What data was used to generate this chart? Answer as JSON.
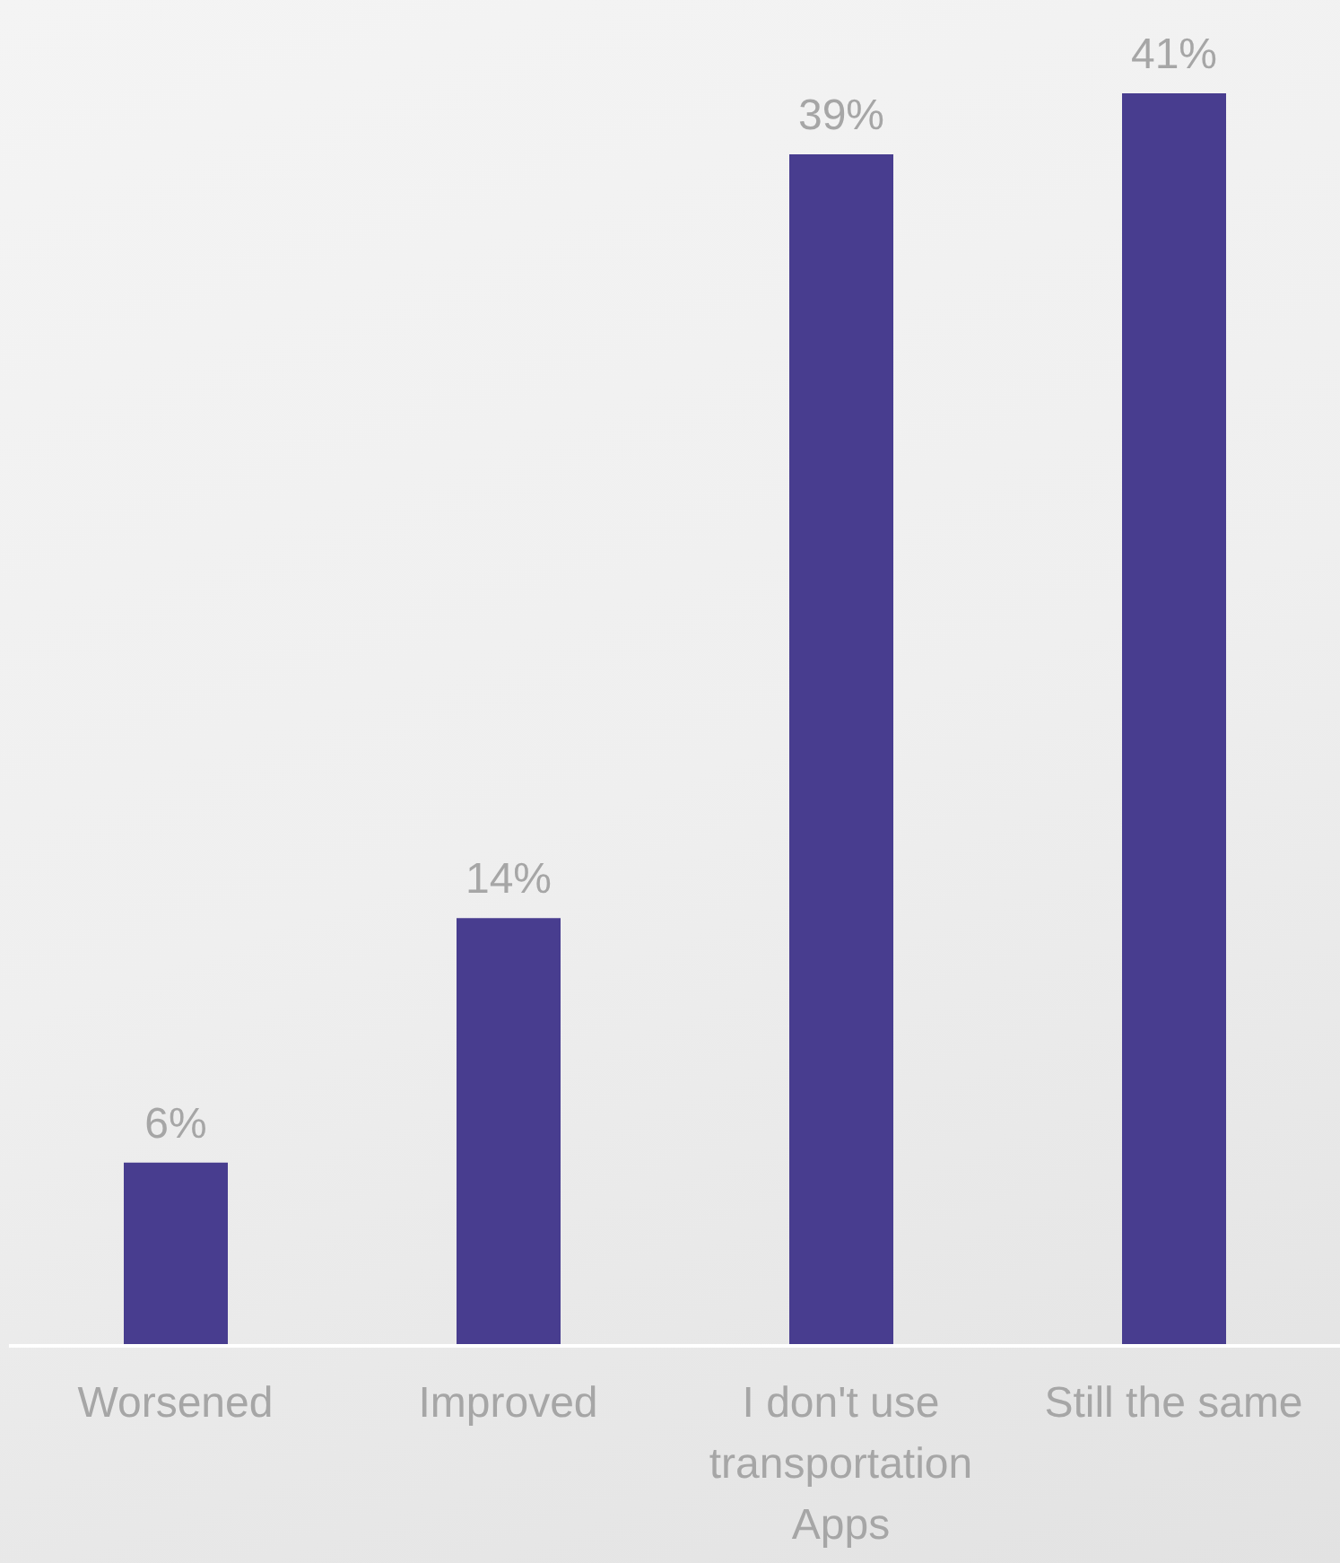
{
  "chart_data": {
    "type": "bar",
    "categories": [
      "Worsened",
      "Improved",
      "I don't use transportation Apps",
      "Still the same"
    ],
    "values": [
      6,
      14,
      39,
      41
    ],
    "color": "#483d8f",
    "value_labels": [
      "6%",
      "14%",
      "39%",
      "41%"
    ],
    "grid": false,
    "legend": false
  }
}
